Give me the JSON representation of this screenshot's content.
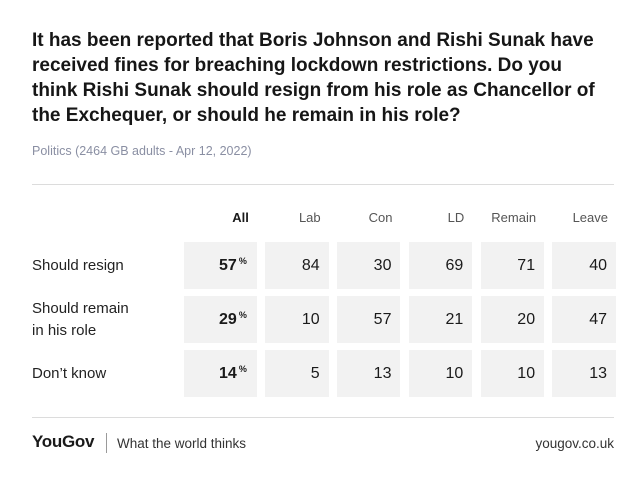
{
  "title": "It has been reported that Boris Johnson and Rishi Sunak have received fines for breaching lockdown restrictions. Do you think Rishi Sunak should resign from his role as Chancellor of the Exchequer, or should he remain in his role?",
  "subtitle": "Politics (2464 GB adults - Apr 12, 2022)",
  "chart_data": {
    "type": "table",
    "title": "It has been reported that Boris Johnson and Rishi Sunak have received fines for breaching lockdown restrictions. Do you think Rishi Sunak should resign from his role as Chancellor of the Exchequer, or should he remain in his role?",
    "columns": [
      "All",
      "Lab",
      "Con",
      "LD",
      "Remain",
      "Leave"
    ],
    "unit": "%",
    "rows": [
      {
        "label_lines": [
          "Should resign"
        ],
        "values": [
          57,
          84,
          30,
          69,
          71,
          40
        ]
      },
      {
        "label_lines": [
          "Should remain",
          "in his role"
        ],
        "values": [
          29,
          10,
          57,
          21,
          20,
          47
        ]
      },
      {
        "label_lines": [
          "Don’t know"
        ],
        "values": [
          14,
          5,
          13,
          10,
          10,
          13
        ]
      }
    ]
  },
  "footer": {
    "logo": "YouGov",
    "tagline": "What the world thinks",
    "url": "yougov.co.uk"
  },
  "colors": {
    "cell_background": "#f2f2f2",
    "subtitle": "#8a8fa3",
    "text": "#1a1a1a"
  }
}
